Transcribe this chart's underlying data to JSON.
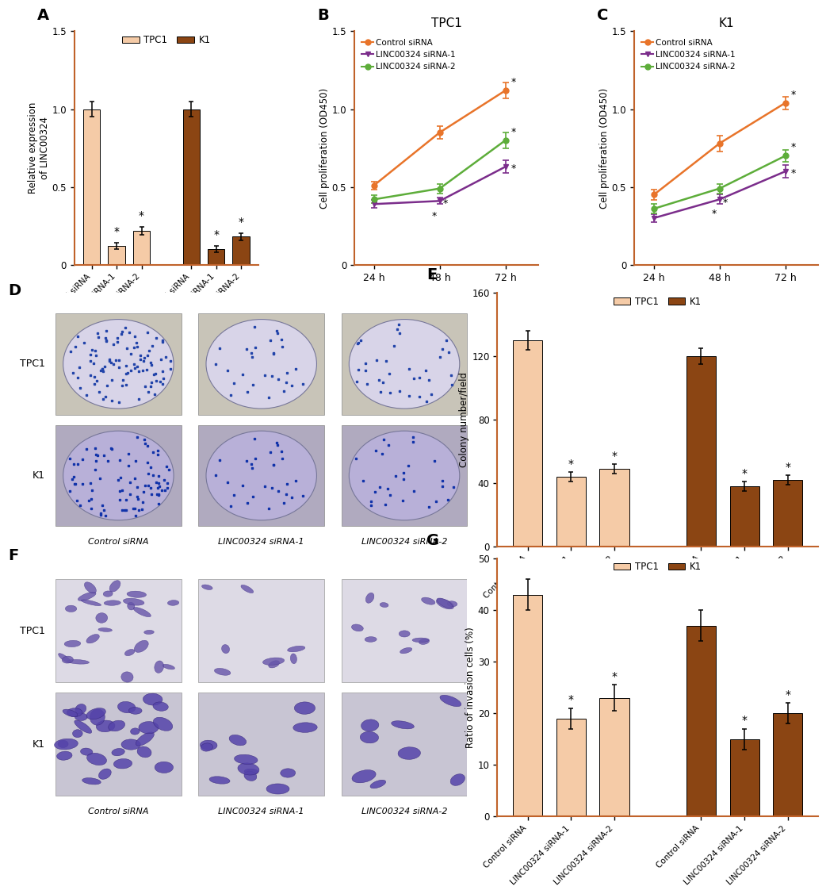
{
  "panel_A": {
    "ylabel": "Relative expression\nof LINC00324",
    "ylim": [
      0,
      1.5
    ],
    "yticks": [
      0.0,
      0.5,
      1.0,
      1.5
    ],
    "values": [
      1.0,
      0.12,
      0.22,
      1.0,
      0.1,
      0.18
    ],
    "errors": [
      0.05,
      0.02,
      0.025,
      0.05,
      0.02,
      0.025
    ],
    "tpc1_color": "#F5CBA7",
    "k1_color": "#8B4513",
    "bar_colors": [
      "#F5CBA7",
      "#F5CBA7",
      "#F5CBA7",
      "#8B4513",
      "#8B4513",
      "#8B4513"
    ],
    "significant": [
      false,
      true,
      true,
      false,
      true,
      true
    ],
    "axis_color": "#C0622A"
  },
  "panel_B": {
    "title": "TPC1",
    "ylabel": "Cell proliferation (OD450)",
    "ylim": [
      0.0,
      1.5
    ],
    "yticks": [
      0.0,
      0.5,
      1.0,
      1.5
    ],
    "timepoints": [
      "24 h",
      "48 h",
      "72 h"
    ],
    "control": [
      0.51,
      0.85,
      1.12
    ],
    "sirna1": [
      0.39,
      0.41,
      0.63
    ],
    "sirna2": [
      0.42,
      0.49,
      0.8
    ],
    "control_err": [
      0.025,
      0.04,
      0.05
    ],
    "sirna1_err": [
      0.025,
      0.02,
      0.04
    ],
    "sirna2_err": [
      0.025,
      0.03,
      0.05
    ],
    "control_color": "#E8742A",
    "sirna1_color": "#7B2D8B",
    "sirna2_color": "#5DAD3A",
    "axis_color": "#C0622A"
  },
  "panel_C": {
    "title": "K1",
    "ylabel": "Cell proliferation (OD450)",
    "ylim": [
      0.0,
      1.5
    ],
    "yticks": [
      0.0,
      0.5,
      1.0,
      1.5
    ],
    "timepoints": [
      "24 h",
      "48 h",
      "72 h"
    ],
    "control": [
      0.45,
      0.78,
      1.04
    ],
    "sirna1": [
      0.3,
      0.42,
      0.6
    ],
    "sirna2": [
      0.36,
      0.49,
      0.7
    ],
    "control_err": [
      0.035,
      0.05,
      0.04
    ],
    "sirna1_err": [
      0.025,
      0.03,
      0.04
    ],
    "sirna2_err": [
      0.03,
      0.03,
      0.04
    ],
    "control_color": "#E8742A",
    "sirna1_color": "#7B2D8B",
    "sirna2_color": "#5DAD3A",
    "axis_color": "#C0622A"
  },
  "panel_E": {
    "ylabel": "Colony number/field",
    "ylim": [
      0,
      160
    ],
    "yticks": [
      0,
      40,
      80,
      120,
      160
    ],
    "values": [
      130,
      44,
      49,
      120,
      38,
      42
    ],
    "errors": [
      6,
      3,
      3,
      5,
      3,
      3
    ],
    "tpc1_color": "#F5CBA7",
    "k1_color": "#8B4513",
    "bar_colors": [
      "#F5CBA7",
      "#F5CBA7",
      "#F5CBA7",
      "#8B4513",
      "#8B4513",
      "#8B4513"
    ],
    "significant": [
      false,
      true,
      true,
      false,
      true,
      true
    ],
    "axis_color": "#C0622A"
  },
  "panel_G": {
    "ylabel": "Ratio of invasion cells (%)",
    "ylim": [
      0,
      50
    ],
    "yticks": [
      0,
      10,
      20,
      30,
      40,
      50
    ],
    "values": [
      43,
      19,
      23,
      37,
      15,
      20
    ],
    "errors": [
      3,
      2,
      2.5,
      3,
      2,
      2
    ],
    "tpc1_color": "#F5CBA7",
    "k1_color": "#8B4513",
    "bar_colors": [
      "#F5CBA7",
      "#F5CBA7",
      "#F5CBA7",
      "#8B4513",
      "#8B4513",
      "#8B4513"
    ],
    "significant": [
      false,
      true,
      true,
      false,
      true,
      true
    ],
    "axis_color": "#C0622A"
  },
  "xtick_labels": [
    "Control siRNA",
    "LINC00324 siRNA-1",
    "LINC00324 siRNA-2",
    "Control siRNA",
    "LINC00324 siRNA-1",
    "LINC00324 siRNA-2"
  ]
}
